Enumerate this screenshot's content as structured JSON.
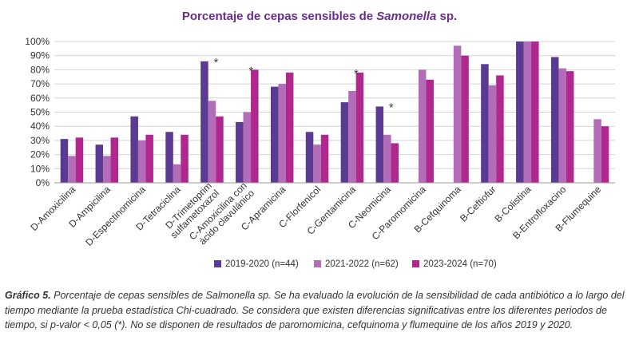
{
  "title": {
    "prefix": "Porcentaje  de cepas sensibles de ",
    "italic": "Samonella",
    "suffix": " sp."
  },
  "chart_data": {
    "type": "bar",
    "title": "Porcentaje  de cepas sensibles de Samonella sp.",
    "xlabel": "",
    "ylabel": "",
    "ylim": [
      0,
      100
    ],
    "yticks": [
      "0%",
      "10%",
      "20%",
      "30%",
      "40%",
      "50%",
      "60%",
      "70%",
      "80%",
      "90%",
      "100%"
    ],
    "grid": true,
    "legend_position": "bottom",
    "categories": [
      "D-Amoxicilina",
      "D-Ampicilina",
      "D-Espectinomicina",
      "D-Tetraciclina",
      "D-Trimetoprim sulfametoxazol",
      "C-Amoxicilina con ácido clavulánico",
      "C-Apramicina",
      "C-Florfenicol",
      "C-Gentamicina",
      "C-Neomicina",
      "C-Paromomicina",
      "B-Cefquinoma",
      "B-Ceftiofur",
      "B-Colistina",
      "B-Entrofloxacino",
      "B-Flumequine"
    ],
    "series": [
      {
        "name": "2019-2020 (n=44)",
        "color": "#5b3a92",
        "values": [
          31,
          27,
          47,
          36,
          86,
          43,
          68,
          36,
          57,
          54,
          null,
          null,
          84,
          100,
          89,
          null
        ]
      },
      {
        "name": "2021-2022 (n=62)",
        "color": "#b26cb8",
        "values": [
          19,
          19,
          30,
          13,
          58,
          50,
          70,
          27,
          65,
          34,
          80,
          97,
          69,
          100,
          81,
          45
        ]
      },
      {
        "name": "2023-2024 (n=70)",
        "color": "#b0288e",
        "values": [
          32,
          32,
          34,
          34,
          47,
          80,
          78,
          34,
          78,
          28,
          73,
          90,
          76,
          100,
          79,
          40
        ]
      }
    ],
    "annotations": [
      {
        "category": "D-Trimetoprim sulfametoxazol",
        "text": "*"
      },
      {
        "category": "C-Amoxicilina con ácido clavulánico",
        "text": "*"
      },
      {
        "category": "C-Gentamicina",
        "text": "*"
      },
      {
        "category": "C-Neomicina",
        "text": "*"
      }
    ]
  },
  "caption": {
    "label": "Gráfico 5.",
    "text": " Porcentaje de cepas sensibles de Salmonella sp. Se ha evaluado la evolución de la sensibilidad de cada antibiótico a lo largo del tiempo mediante la prueba estadística Chi-cuadrado. Se considera que existen diferencias significativas entre los diferentes periodos de tiempo, si p-valor < 0,05 (*). No se disponen de resultados de paromomicina, cefquinoma y flumequine de los años 2019 y 2020."
  }
}
